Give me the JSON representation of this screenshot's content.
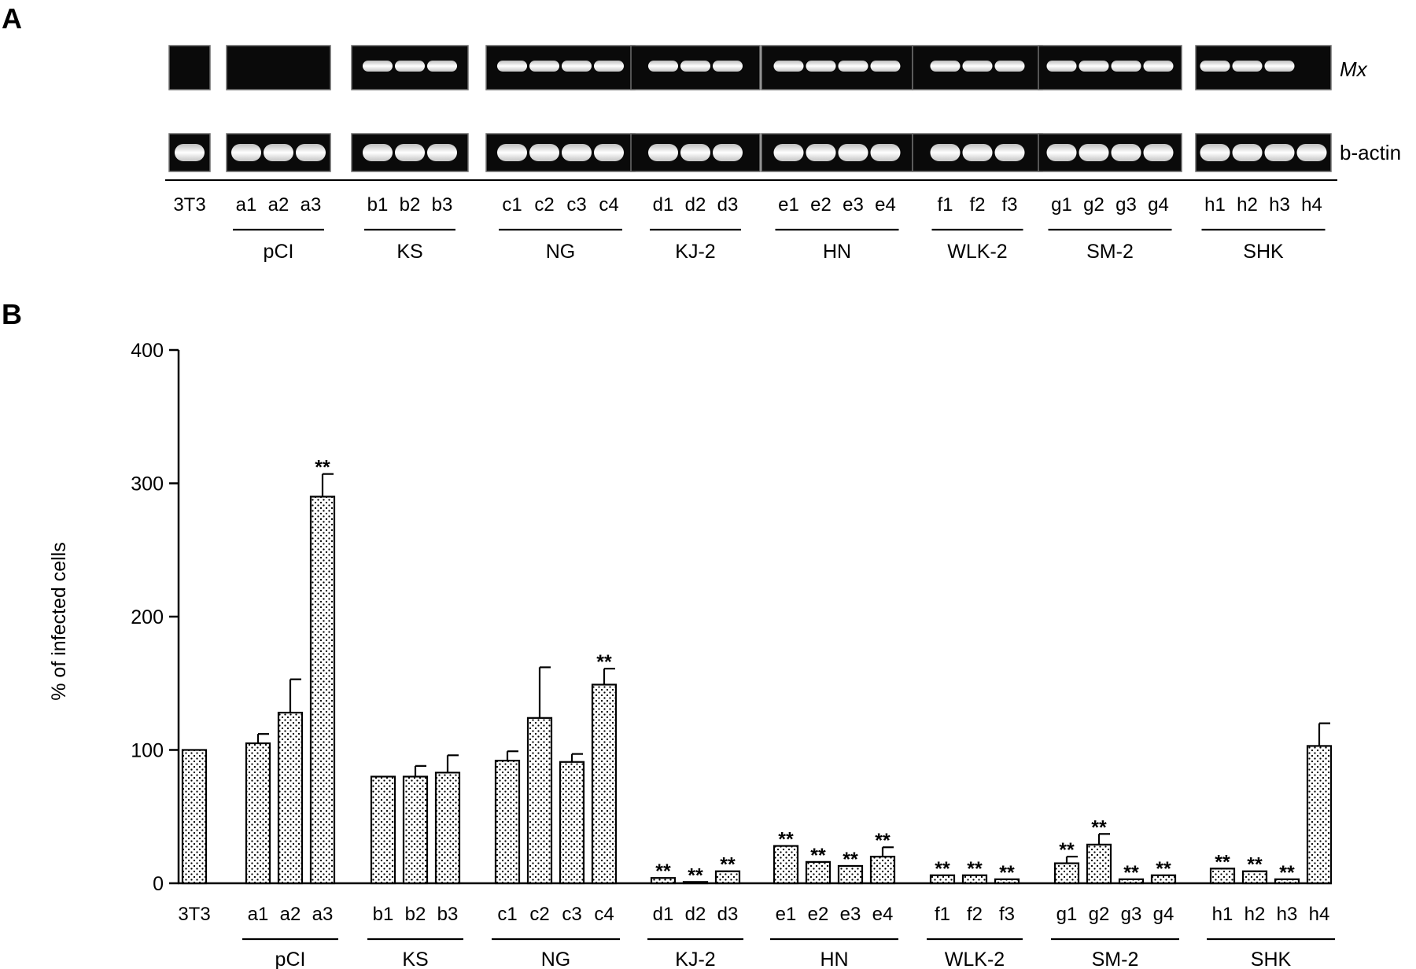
{
  "panel_a": {
    "label": "A",
    "row_labels": [
      "Mx",
      "b-actin"
    ]
  },
  "panel_b": {
    "label": "B"
  },
  "chart_data": {
    "type": "bar",
    "ylabel": "% of infected cells",
    "ylim": [
      0,
      400
    ],
    "yticks": [
      0,
      100,
      200,
      300,
      400
    ],
    "groups": [
      {
        "name": "",
        "lanes": [
          "3T3"
        ],
        "values": [
          100
        ],
        "errors": [
          0
        ],
        "significance": [
          ""
        ],
        "mx_band": [
          0
        ]
      },
      {
        "name": "pCI",
        "lanes": [
          "a1",
          "a2",
          "a3"
        ],
        "values": [
          105,
          128,
          290
        ],
        "errors": [
          7,
          25,
          17
        ],
        "significance": [
          "",
          "",
          "**"
        ],
        "mx_band": [
          0,
          0,
          0
        ]
      },
      {
        "name": "KS",
        "lanes": [
          "b1",
          "b2",
          "b3"
        ],
        "values": [
          80,
          80,
          83
        ],
        "errors": [
          0,
          8,
          13
        ],
        "significance": [
          "",
          "",
          ""
        ],
        "mx_band": [
          1,
          1,
          1
        ]
      },
      {
        "name": "NG",
        "lanes": [
          "c1",
          "c2",
          "c3",
          "c4"
        ],
        "values": [
          92,
          124,
          91,
          149
        ],
        "errors": [
          7,
          38,
          6,
          12
        ],
        "significance": [
          "",
          "",
          "",
          "**"
        ],
        "mx_band": [
          1,
          1,
          1,
          1
        ]
      },
      {
        "name": "KJ-2",
        "lanes": [
          "d1",
          "d2",
          "d3"
        ],
        "values": [
          4,
          1,
          9
        ],
        "errors": [
          0,
          0,
          0
        ],
        "significance": [
          "**",
          "**",
          "**"
        ],
        "mx_band": [
          1,
          1,
          1
        ]
      },
      {
        "name": "HN",
        "lanes": [
          "e1",
          "e2",
          "e3",
          "e4"
        ],
        "values": [
          28,
          16,
          13,
          20
        ],
        "errors": [
          0,
          0,
          0,
          7
        ],
        "significance": [
          "**",
          "**",
          "**",
          "**"
        ],
        "mx_band": [
          1,
          1,
          1,
          1
        ]
      },
      {
        "name": "WLK-2",
        "lanes": [
          "f1",
          "f2",
          "f3"
        ],
        "values": [
          6,
          6,
          3
        ],
        "errors": [
          0,
          0,
          0
        ],
        "significance": [
          "**",
          "**",
          "**"
        ],
        "mx_band": [
          1,
          1,
          1
        ]
      },
      {
        "name": "SM-2",
        "lanes": [
          "g1",
          "g2",
          "g3",
          "g4"
        ],
        "values": [
          15,
          29,
          3,
          6
        ],
        "errors": [
          5,
          8,
          0,
          0
        ],
        "significance": [
          "**",
          "**",
          "**",
          "**"
        ],
        "mx_band": [
          1,
          1,
          1,
          1
        ]
      },
      {
        "name": "SHK",
        "lanes": [
          "h1",
          "h2",
          "h3",
          "h4"
        ],
        "values": [
          11,
          9,
          3,
          103
        ],
        "errors": [
          0,
          0,
          0,
          17
        ],
        "significance": [
          "**",
          "**",
          "**",
          ""
        ],
        "mx_band": [
          1,
          1,
          1,
          0
        ]
      }
    ]
  }
}
